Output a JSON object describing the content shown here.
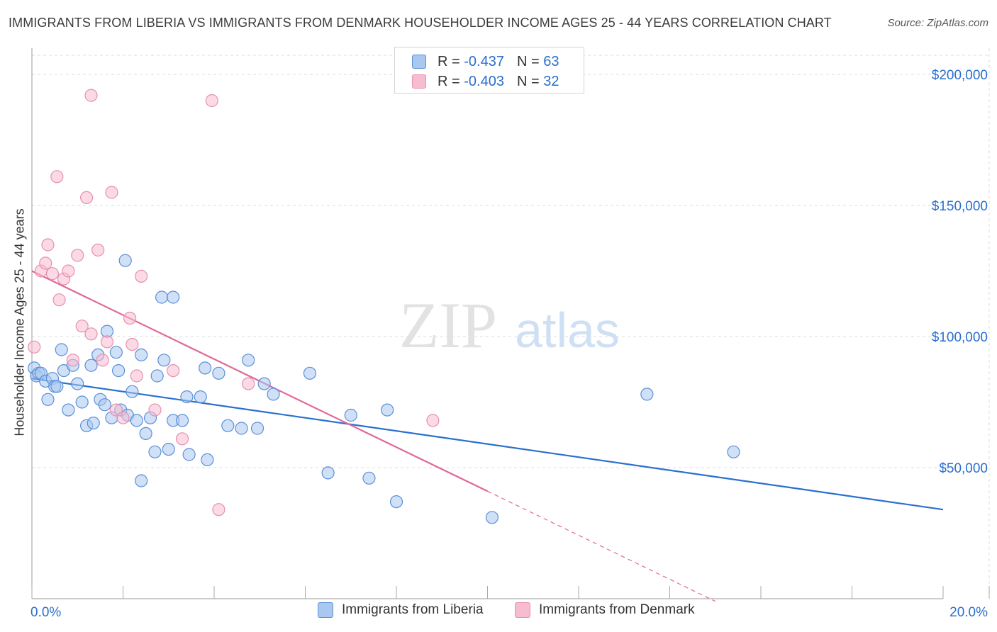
{
  "title": "IMMIGRANTS FROM LIBERIA VS IMMIGRANTS FROM DENMARK HOUSEHOLDER INCOME AGES 25 - 44 YEARS CORRELATION CHART",
  "source": "Source: ZipAtlas.com",
  "watermark": {
    "zip": "ZIP",
    "atlas": "atlas"
  },
  "legend": {
    "liberia": {
      "r_label": "R =",
      "r_value": "-0.437",
      "n_label": "N =",
      "n_value": "63"
    },
    "denmark": {
      "r_label": "R =",
      "r_value": "-0.403",
      "n_label": "N =",
      "n_value": "32"
    }
  },
  "colors": {
    "liberia_fill": "#a9c8f0",
    "liberia_stroke": "#5b8fd6",
    "liberia_line": "#2a6fcf",
    "denmark_fill": "#f7bcd0",
    "denmark_stroke": "#e690ad",
    "denmark_line": "#e0679a",
    "tick_label": "#2a6fcf",
    "grid": "#dddddd"
  },
  "chart_data": {
    "type": "scatter",
    "title": "IMMIGRANTS FROM LIBERIA VS IMMIGRANTS FROM DENMARK HOUSEHOLDER INCOME AGES 25 - 44 YEARS CORRELATION CHART",
    "xlabel": "",
    "ylabel": "Householder Income Ages 25 - 44 years",
    "xlim": [
      0,
      20
    ],
    "ylim": [
      0,
      210000
    ],
    "x_tick_labels": [
      "0.0%",
      "20.0%"
    ],
    "y_ticks": [
      50000,
      100000,
      150000,
      200000
    ],
    "y_tick_labels": [
      "$50,000",
      "$100,000",
      "$150,000",
      "$200,000"
    ],
    "grid": true,
    "legend_position": "top-center",
    "series": [
      {
        "name": "Immigrants from Liberia",
        "points": [
          [
            0.05,
            88000
          ],
          [
            0.1,
            85000
          ],
          [
            0.15,
            86000
          ],
          [
            0.2,
            86000
          ],
          [
            0.3,
            83000
          ],
          [
            0.35,
            76000
          ],
          [
            0.45,
            84000
          ],
          [
            0.5,
            81000
          ],
          [
            0.55,
            81000
          ],
          [
            0.65,
            95000
          ],
          [
            0.7,
            87000
          ],
          [
            0.8,
            72000
          ],
          [
            0.9,
            89000
          ],
          [
            1.0,
            82000
          ],
          [
            1.1,
            75000
          ],
          [
            1.2,
            66000
          ],
          [
            1.3,
            89000
          ],
          [
            1.35,
            67000
          ],
          [
            1.45,
            93000
          ],
          [
            1.5,
            76000
          ],
          [
            1.6,
            74000
          ],
          [
            1.65,
            102000
          ],
          [
            1.75,
            69000
          ],
          [
            1.85,
            94000
          ],
          [
            1.9,
            87000
          ],
          [
            1.95,
            72000
          ],
          [
            2.05,
            129000
          ],
          [
            2.1,
            70000
          ],
          [
            2.2,
            79000
          ],
          [
            2.3,
            68000
          ],
          [
            2.4,
            93000
          ],
          [
            2.5,
            63000
          ],
          [
            2.6,
            69000
          ],
          [
            2.7,
            56000
          ],
          [
            2.75,
            85000
          ],
          [
            2.85,
            115000
          ],
          [
            2.9,
            91000
          ],
          [
            3.0,
            57000
          ],
          [
            3.1,
            68000
          ],
          [
            3.1,
            115000
          ],
          [
            3.3,
            68000
          ],
          [
            3.4,
            77000
          ],
          [
            3.45,
            55000
          ],
          [
            3.7,
            77000
          ],
          [
            3.85,
            53000
          ],
          [
            3.8,
            88000
          ],
          [
            4.1,
            86000
          ],
          [
            4.3,
            66000
          ],
          [
            4.6,
            65000
          ],
          [
            4.75,
            91000
          ],
          [
            4.95,
            65000
          ],
          [
            5.1,
            82000
          ],
          [
            5.3,
            78000
          ],
          [
            6.1,
            86000
          ],
          [
            6.5,
            48000
          ],
          [
            7.0,
            70000
          ],
          [
            7.4,
            46000
          ],
          [
            7.8,
            72000
          ],
          [
            8.0,
            37000
          ],
          [
            10.1,
            31000
          ],
          [
            13.5,
            78000
          ],
          [
            15.4,
            56000
          ],
          [
            2.4,
            45000
          ]
        ],
        "trend": {
          "x": [
            0,
            20
          ],
          "y": [
            84000,
            34000
          ]
        }
      },
      {
        "name": "Immigrants from Denmark",
        "points": [
          [
            0.05,
            96000
          ],
          [
            0.2,
            125000
          ],
          [
            0.3,
            128000
          ],
          [
            0.35,
            135000
          ],
          [
            0.45,
            124000
          ],
          [
            0.55,
            161000
          ],
          [
            0.6,
            114000
          ],
          [
            0.7,
            122000
          ],
          [
            0.8,
            125000
          ],
          [
            0.9,
            91000
          ],
          [
            1.0,
            131000
          ],
          [
            1.1,
            104000
          ],
          [
            1.2,
            153000
          ],
          [
            1.3,
            101000
          ],
          [
            1.3,
            192000
          ],
          [
            1.45,
            133000
          ],
          [
            1.55,
            91000
          ],
          [
            1.65,
            98000
          ],
          [
            1.75,
            155000
          ],
          [
            1.85,
            72000
          ],
          [
            2.0,
            69000
          ],
          [
            2.15,
            107000
          ],
          [
            2.2,
            97000
          ],
          [
            2.3,
            85000
          ],
          [
            2.4,
            123000
          ],
          [
            2.7,
            72000
          ],
          [
            3.1,
            87000
          ],
          [
            3.3,
            61000
          ],
          [
            3.95,
            190000
          ],
          [
            4.1,
            34000
          ],
          [
            4.75,
            82000
          ],
          [
            8.8,
            68000
          ]
        ],
        "trend": {
          "x": [
            0,
            10
          ],
          "y": [
            125000,
            41000
          ]
        },
        "trend_extension": {
          "x": [
            10,
            15
          ],
          "y": [
            41000,
            -1000
          ]
        }
      }
    ]
  },
  "bottom_legend": {
    "liberia_label": "Immigrants from Liberia",
    "denmark_label": "Immigrants from Denmark"
  }
}
